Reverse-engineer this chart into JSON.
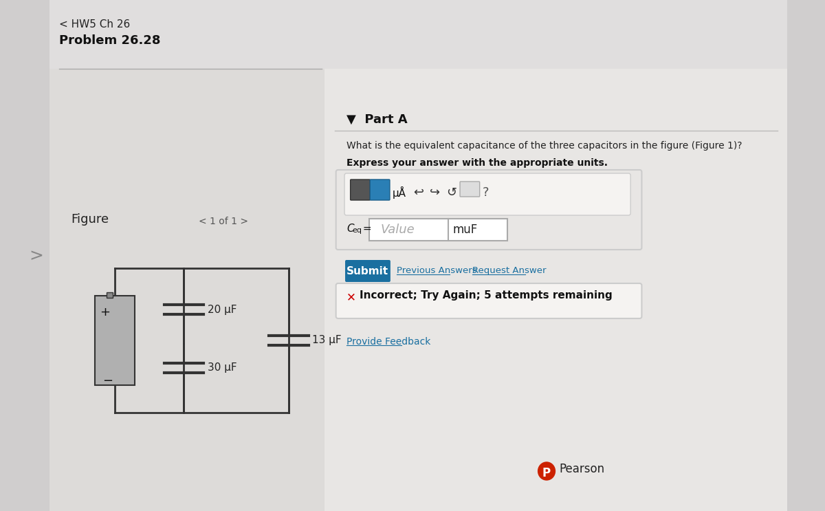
{
  "bg_color": "#d0cece",
  "panel_bg": "#e8e6e6",
  "right_panel_bg": "#f0eeee",
  "title_hw": "< HW5 Ch 26",
  "title_problem": "Problem 26.28",
  "figure_label": "Figure",
  "figure_nav": "< 1 of 1 >",
  "part_a_label": "▼  Part A",
  "question_text": "What is the equivalent capacitance of the three capacitors in the figure (Figure 1)?",
  "express_text": "Express your answer with the appropriate units.",
  "value_placeholder": "Value",
  "unit_label": "muF",
  "submit_text": "Submit",
  "prev_answers": "Previous Answers",
  "request_answer": "Request Answer",
  "incorrect_text": "Incorrect; Try Again; 5 attempts remaining",
  "provide_feedback": "Provide Feedback",
  "pearson_text": "Pearson",
  "cap1": "20 μF",
  "cap2": "13 μF",
  "cap3": "30 μF",
  "submit_color": "#1a6fa0",
  "incorrect_x_color": "#cc0000",
  "link_color": "#1a6fa0",
  "provide_feedback_color": "#1a6fa0",
  "pearson_color": "#cc2200"
}
